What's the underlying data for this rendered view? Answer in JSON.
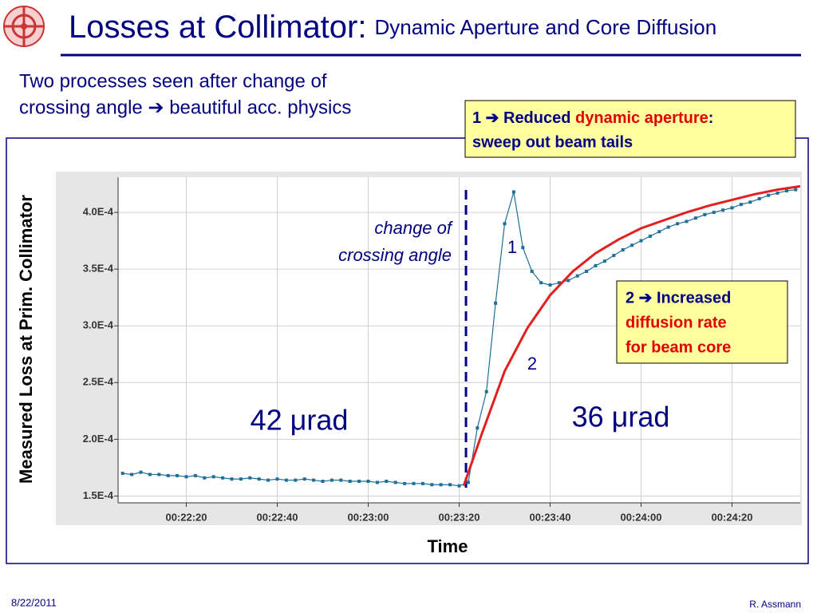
{
  "title": "Losses at Collimator:",
  "subtitle": "Dynamic Aperture and Core Diffusion",
  "intro": [
    "Two processes seen after change of",
    "crossing angle ➔ beautiful acc. physics"
  ],
  "callout1": {
    "parts": [
      "1 ➔ Reduced ",
      "dynamic aperture",
      ":"
    ],
    "line2": "sweep out beam tails"
  },
  "callout2": {
    "lines": [
      "2 ➔ Increased",
      "diffusion rate",
      "for beam core"
    ]
  },
  "footer": {
    "date": "8/22/2011",
    "author": "R. Assmann"
  },
  "chart_data": {
    "type": "line",
    "ylabel": "Measured Loss at Prim. Collimator",
    "xlabel": "Time",
    "xlim": [
      1325,
      1475
    ],
    "xticks": [
      {
        "value": 1340,
        "label": "00:22:20"
      },
      {
        "value": 1360,
        "label": "00:22:40"
      },
      {
        "value": 1380,
        "label": "00:23:00"
      },
      {
        "value": 1400,
        "label": "00:23:20"
      },
      {
        "value": 1420,
        "label": "00:23:40"
      },
      {
        "value": 1440,
        "label": "00:24:00"
      },
      {
        "value": 1460,
        "label": "00:24:20"
      }
    ],
    "ylim": [
      0.000144,
      0.000431
    ],
    "yticks": [
      {
        "value": 0.00015,
        "label": "1.5E-4"
      },
      {
        "value": 0.0002,
        "label": "2.0E-4"
      },
      {
        "value": 0.00025,
        "label": "2.5E-4"
      },
      {
        "value": 0.0003,
        "label": "3.0E-4"
      },
      {
        "value": 0.00035,
        "label": "3.5E-4"
      },
      {
        "value": 0.0004,
        "label": "4.0E-4"
      }
    ],
    "grid": true,
    "series": [
      {
        "name": "measured",
        "color": "#1f6f9a",
        "x": [
          1326,
          1328,
          1330,
          1332,
          1334,
          1336,
          1338,
          1340,
          1342,
          1344,
          1346,
          1348,
          1350,
          1352,
          1354,
          1356,
          1358,
          1360,
          1362,
          1364,
          1366,
          1368,
          1370,
          1372,
          1374,
          1376,
          1378,
          1380,
          1382,
          1384,
          1386,
          1388,
          1390,
          1392,
          1394,
          1396,
          1398,
          1400,
          1402,
          1404,
          1406,
          1408,
          1410,
          1412,
          1414,
          1416,
          1418,
          1420,
          1422,
          1424,
          1426,
          1428,
          1430,
          1432,
          1434,
          1436,
          1438,
          1440,
          1442,
          1444,
          1446,
          1448,
          1450,
          1452,
          1454,
          1456,
          1458,
          1460,
          1462,
          1464,
          1466,
          1468,
          1470,
          1472,
          1474
        ],
        "values": [
          0.00017,
          0.000169,
          0.000171,
          0.000169,
          0.000169,
          0.000168,
          0.000168,
          0.000167,
          0.000168,
          0.000166,
          0.000167,
          0.000166,
          0.000165,
          0.000165,
          0.000166,
          0.000165,
          0.000164,
          0.000165,
          0.000164,
          0.000164,
          0.000165,
          0.000164,
          0.000163,
          0.000164,
          0.000164,
          0.000163,
          0.000163,
          0.000163,
          0.000162,
          0.000163,
          0.000162,
          0.000161,
          0.000161,
          0.000161,
          0.00016,
          0.00016,
          0.00016,
          0.000159,
          0.000162,
          0.00021,
          0.000242,
          0.00032,
          0.00039,
          0.000418,
          0.000369,
          0.000348,
          0.000338,
          0.000336,
          0.000338,
          0.00034,
          0.000344,
          0.000348,
          0.000353,
          0.000357,
          0.000362,
          0.000367,
          0.000371,
          0.000375,
          0.000379,
          0.000383,
          0.000387,
          0.00039,
          0.000392,
          0.000395,
          0.000398,
          0.0004,
          0.000402,
          0.000404,
          0.000407,
          0.000409,
          0.000412,
          0.000415,
          0.000417,
          0.000419,
          0.00042
        ]
      },
      {
        "name": "fit",
        "color": "#e32020",
        "x": [
          1401,
          1405,
          1410,
          1415,
          1420,
          1425,
          1430,
          1435,
          1440,
          1445,
          1450,
          1455,
          1460,
          1465,
          1470,
          1475
        ],
        "values": [
          0.000159,
          0.000205,
          0.00026,
          0.000298,
          0.000327,
          0.000348,
          0.000364,
          0.000376,
          0.000386,
          0.000393,
          0.0004,
          0.000406,
          0.000411,
          0.000416,
          0.00042,
          0.000423
        ]
      }
    ],
    "marker_x": 1401.5,
    "annotations": {
      "change": [
        "change of",
        "crossing angle"
      ],
      "one": "1",
      "two": "2",
      "before": "42 μrad",
      "after": "36 μrad"
    }
  }
}
